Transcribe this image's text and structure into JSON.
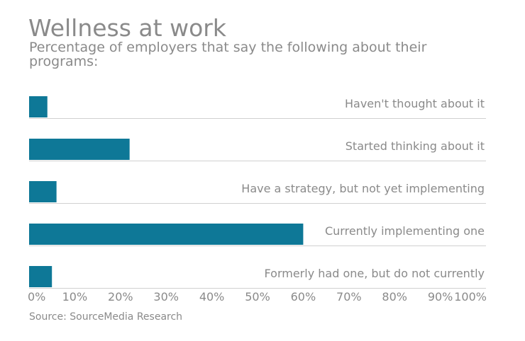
{
  "chart_data": {
    "type": "bar",
    "orientation": "horizontal",
    "title": "Wellness at work",
    "subtitle": "Percentage of employers that say the following about their programs:",
    "categories": [
      "Haven't thought about it",
      "Started thinking about it",
      "Have a strategy, but not yet implementing",
      "Currently implementing one",
      "Formerly had one, but do not currently"
    ],
    "values": [
      4,
      22,
      6,
      60,
      5
    ],
    "xlim": [
      0,
      100
    ],
    "x_ticks": [
      "0%",
      "10%",
      "20%",
      "30%",
      "40%",
      "50%",
      "60%",
      "70%",
      "80%",
      "90%",
      "100%"
    ],
    "grid": false,
    "source": "Source: SourceMedia Research",
    "colors": {
      "bar": "#0e7897",
      "text": "#8a8a8a",
      "rule": "#d0d0d0"
    }
  }
}
